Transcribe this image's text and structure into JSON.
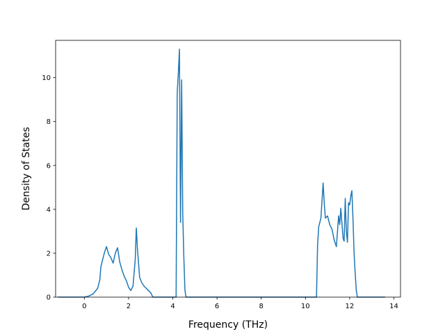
{
  "chart_data": {
    "type": "line",
    "title": "",
    "xlabel": "Frequency (THz)",
    "ylabel": "Density of States",
    "xlim": [
      -1.3,
      14.3
    ],
    "ylim": [
      0,
      11.7
    ],
    "xticks": [
      "0",
      "2",
      "4",
      "6",
      "8",
      "10",
      "12",
      "14"
    ],
    "yticks": [
      "0",
      "2",
      "4",
      "6",
      "8",
      "10"
    ],
    "xtick_values": [
      0,
      2,
      4,
      6,
      8,
      10,
      12,
      14
    ],
    "ytick_values": [
      0,
      2,
      4,
      6,
      8,
      10
    ],
    "line_color": "#1f77b4",
    "grid": false,
    "series": [
      {
        "x": [
          -1.2,
          0.0,
          0.2,
          0.4,
          0.6,
          0.7,
          0.75,
          0.8,
          0.9,
          1.0,
          1.1,
          1.2,
          1.3,
          1.4,
          1.5,
          1.6,
          1.7,
          1.8,
          1.9,
          2.0,
          2.1,
          2.2,
          2.3,
          2.35,
          2.4,
          2.5,
          2.6,
          2.7,
          2.8,
          2.9,
          3.0,
          3.1,
          3.2,
          4.15,
          4.2,
          4.25,
          4.3,
          4.35,
          4.4,
          4.45,
          4.5,
          4.55,
          4.6,
          4.65,
          4.7,
          6.0,
          8.0,
          10.0,
          10.5,
          10.55,
          10.6,
          10.7,
          10.8,
          10.85,
          10.9,
          11.0,
          11.1,
          11.2,
          11.3,
          11.4,
          11.5,
          11.55,
          11.6,
          11.7,
          11.75,
          11.8,
          11.85,
          11.9,
          11.95,
          12.0,
          12.05,
          12.1,
          12.15,
          12.2,
          12.25,
          12.3,
          12.35,
          12.4,
          13.6
        ],
        "y": [
          0.0,
          0.0,
          0.05,
          0.15,
          0.4,
          0.8,
          1.4,
          1.6,
          2.0,
          2.3,
          1.95,
          1.8,
          1.55,
          2.0,
          2.25,
          1.6,
          1.25,
          0.95,
          0.75,
          0.45,
          0.3,
          0.5,
          1.7,
          3.15,
          2.2,
          0.9,
          0.65,
          0.5,
          0.4,
          0.3,
          0.2,
          0.0,
          0.0,
          0.0,
          9.3,
          10.2,
          11.3,
          3.4,
          9.9,
          3.8,
          1.8,
          0.3,
          0.0,
          0.0,
          0.0,
          0.0,
          0.0,
          0.0,
          0.0,
          2.4,
          3.2,
          3.6,
          5.2,
          4.3,
          3.6,
          3.7,
          3.3,
          3.1,
          2.6,
          2.3,
          3.7,
          3.3,
          4.05,
          2.7,
          2.55,
          4.5,
          3.0,
          2.5,
          4.3,
          4.2,
          4.6,
          4.85,
          3.6,
          2.0,
          1.1,
          0.3,
          0.0,
          0.0,
          0.0
        ]
      }
    ]
  }
}
